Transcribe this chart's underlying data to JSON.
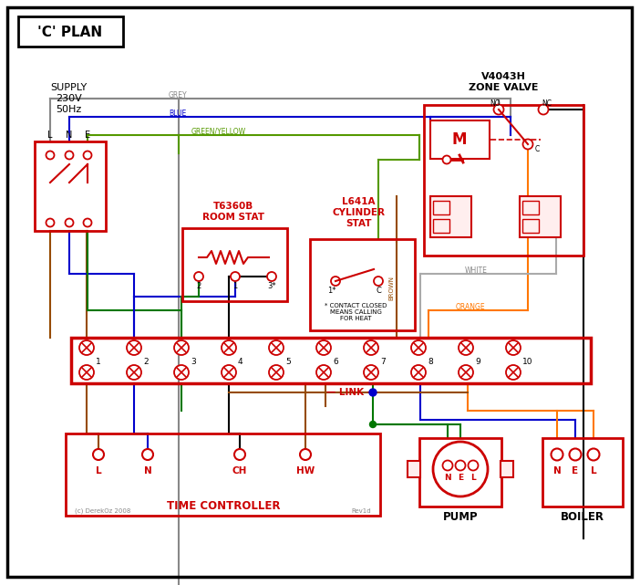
{
  "title": "'C' PLAN",
  "bg_color": "#ffffff",
  "red": "#cc0000",
  "black": "#000000",
  "brown": "#964B00",
  "blue": "#0000cc",
  "green": "#007700",
  "grey": "#888888",
  "orange": "#FF7700",
  "white_wire": "#aaaaaa",
  "green_yellow": "#559900",
  "supply_text": "SUPPLY\n230V\n50Hz",
  "zone_valve_title": "V4043H\nZONE VALVE",
  "room_stat_title": "T6360B\nROOM STAT",
  "cylinder_stat_title": "L641A\nCYLINDER\nSTAT",
  "contact_note": "* CONTACT CLOSED\nMEANS CALLING\nFOR HEAT",
  "time_controller_label": "TIME CONTROLLER",
  "pump_label": "PUMP",
  "boiler_label": "BOILER",
  "copyright": "(c) DerekOz 2008",
  "rev": "Rev1d"
}
